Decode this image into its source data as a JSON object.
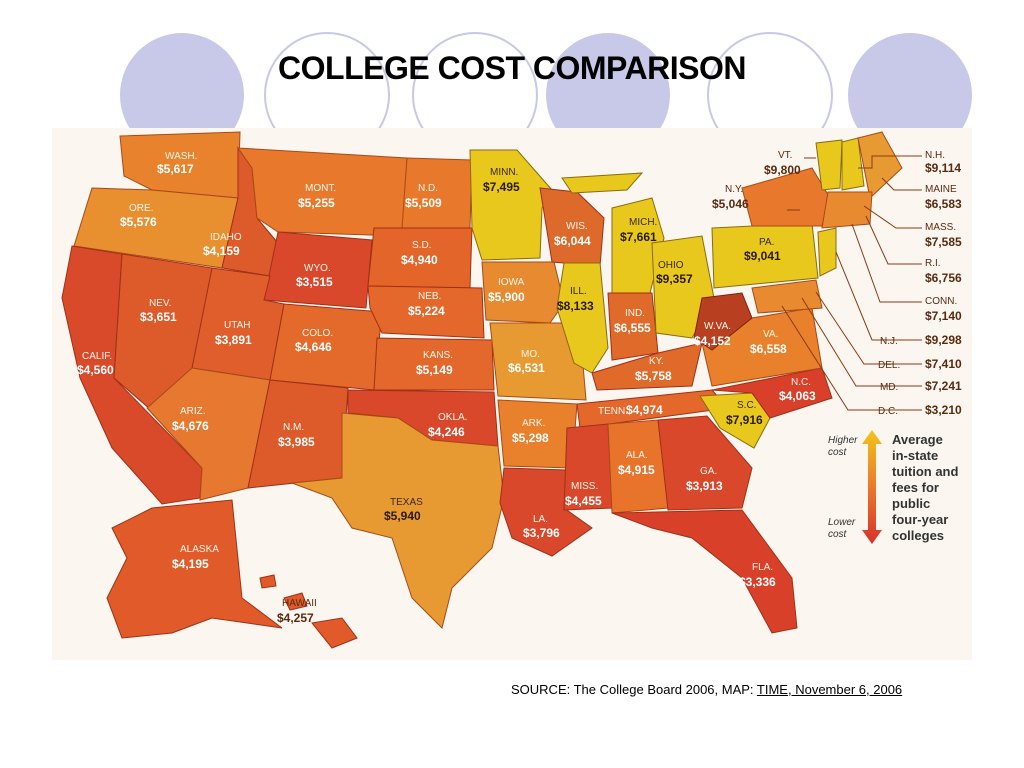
{
  "title": "COLLEGE COST COMPARISON",
  "source": {
    "prefix": "SOURCE: The College Board 2006, MAP: ",
    "link": "TIME, November 6, 2006"
  },
  "colors": {
    "highest": "#e8c81c",
    "high": "#e89a32",
    "mid": "#e8702a",
    "low": "#d8402a",
    "decor_circle": "#c8c8e8"
  },
  "legend": {
    "higher": [
      "Higher",
      "cost"
    ],
    "lower": [
      "Lower",
      "cost"
    ],
    "heading": [
      "Average",
      "in-state",
      "tuition and",
      "fees for",
      "public",
      "four-year",
      "colleges"
    ]
  },
  "states": {
    "wash": {
      "abbr": "WASH.",
      "cost": "$5,617"
    },
    "ore": {
      "abbr": "ORE.",
      "cost": "$5,576"
    },
    "calif": {
      "abbr": "CALIF.",
      "cost": "$4,560"
    },
    "nev": {
      "abbr": "NEV.",
      "cost": "$3,651"
    },
    "idaho": {
      "abbr": "IDAHO",
      "cost": "$4,159"
    },
    "mont": {
      "abbr": "MONT.",
      "cost": "$5,255"
    },
    "wyo": {
      "abbr": "WYO.",
      "cost": "$3,515"
    },
    "utah": {
      "abbr": "UTAH",
      "cost": "$3,891"
    },
    "ariz": {
      "abbr": "ARIZ.",
      "cost": "$4,676"
    },
    "colo": {
      "abbr": "COLO.",
      "cost": "$4,646"
    },
    "nm": {
      "abbr": "N.M.",
      "cost": "$3,985"
    },
    "nd": {
      "abbr": "N.D.",
      "cost": "$5,509"
    },
    "sd": {
      "abbr": "S.D.",
      "cost": "$4,940"
    },
    "neb": {
      "abbr": "NEB.",
      "cost": "$5,224"
    },
    "kans": {
      "abbr": "KANS.",
      "cost": "$5,149"
    },
    "okla": {
      "abbr": "OKLA.",
      "cost": "$4,246"
    },
    "texas": {
      "abbr": "TEXAS",
      "cost": "$5,940"
    },
    "minn": {
      "abbr": "MINN.",
      "cost": "$7,495"
    },
    "iowa": {
      "abbr": "IOWA",
      "cost": "$5,900"
    },
    "mo": {
      "abbr": "MO.",
      "cost": "$6,531"
    },
    "ark": {
      "abbr": "ARK.",
      "cost": "$5,298"
    },
    "la": {
      "abbr": "LA.",
      "cost": "$3,796"
    },
    "wis": {
      "abbr": "WIS.",
      "cost": "$6,044"
    },
    "ill": {
      "abbr": "ILL.",
      "cost": "$8,133"
    },
    "mich": {
      "abbr": "MICH.",
      "cost": "$7,661"
    },
    "ind": {
      "abbr": "IND.",
      "cost": "$6,555"
    },
    "ohio": {
      "abbr": "OHIO",
      "cost": "$9,357"
    },
    "ky": {
      "abbr": "KY.",
      "cost": "$5,758"
    },
    "tenn": {
      "abbr": "TENN.",
      "cost": "$4,974"
    },
    "miss": {
      "abbr": "MISS.",
      "cost": "$4,455"
    },
    "ala": {
      "abbr": "ALA.",
      "cost": "$4,915"
    },
    "ga": {
      "abbr": "GA.",
      "cost": "$3,913"
    },
    "fla": {
      "abbr": "FLA.",
      "cost": "$3,336"
    },
    "sc": {
      "abbr": "S.C.",
      "cost": "$7,916"
    },
    "nc": {
      "abbr": "N.C.",
      "cost": "$4,063"
    },
    "va": {
      "abbr": "VA.",
      "cost": "$6,558"
    },
    "wva": {
      "abbr": "W.VA.",
      "cost": "$4,152"
    },
    "pa": {
      "abbr": "PA.",
      "cost": "$9,041"
    },
    "ny": {
      "abbr": "N.Y.",
      "cost": "$5,046"
    },
    "vt": {
      "abbr": "VT.",
      "cost": "$9,800"
    },
    "alaska": {
      "abbr": "ALASKA",
      "cost": "$4,195"
    },
    "hawaii": {
      "abbr": "HAWAII",
      "cost": "$4,257"
    },
    "nh": {
      "abbr": "N.H.",
      "cost": "$9,114"
    },
    "maine": {
      "abbr": "MAINE",
      "cost": "$6,583"
    },
    "mass": {
      "abbr": "MASS.",
      "cost": "$7,585"
    },
    "ri": {
      "abbr": "R.I.",
      "cost": "$6,756"
    },
    "conn": {
      "abbr": "CONN.",
      "cost": "$7,140"
    },
    "nj": {
      "abbr": "N.J.",
      "cost": "$9,298"
    },
    "del": {
      "abbr": "DEL.",
      "cost": "$7,410"
    },
    "md": {
      "abbr": "MD.",
      "cost": "$7,241"
    },
    "dc": {
      "abbr": "D.C.",
      "cost": "$3,210"
    }
  }
}
